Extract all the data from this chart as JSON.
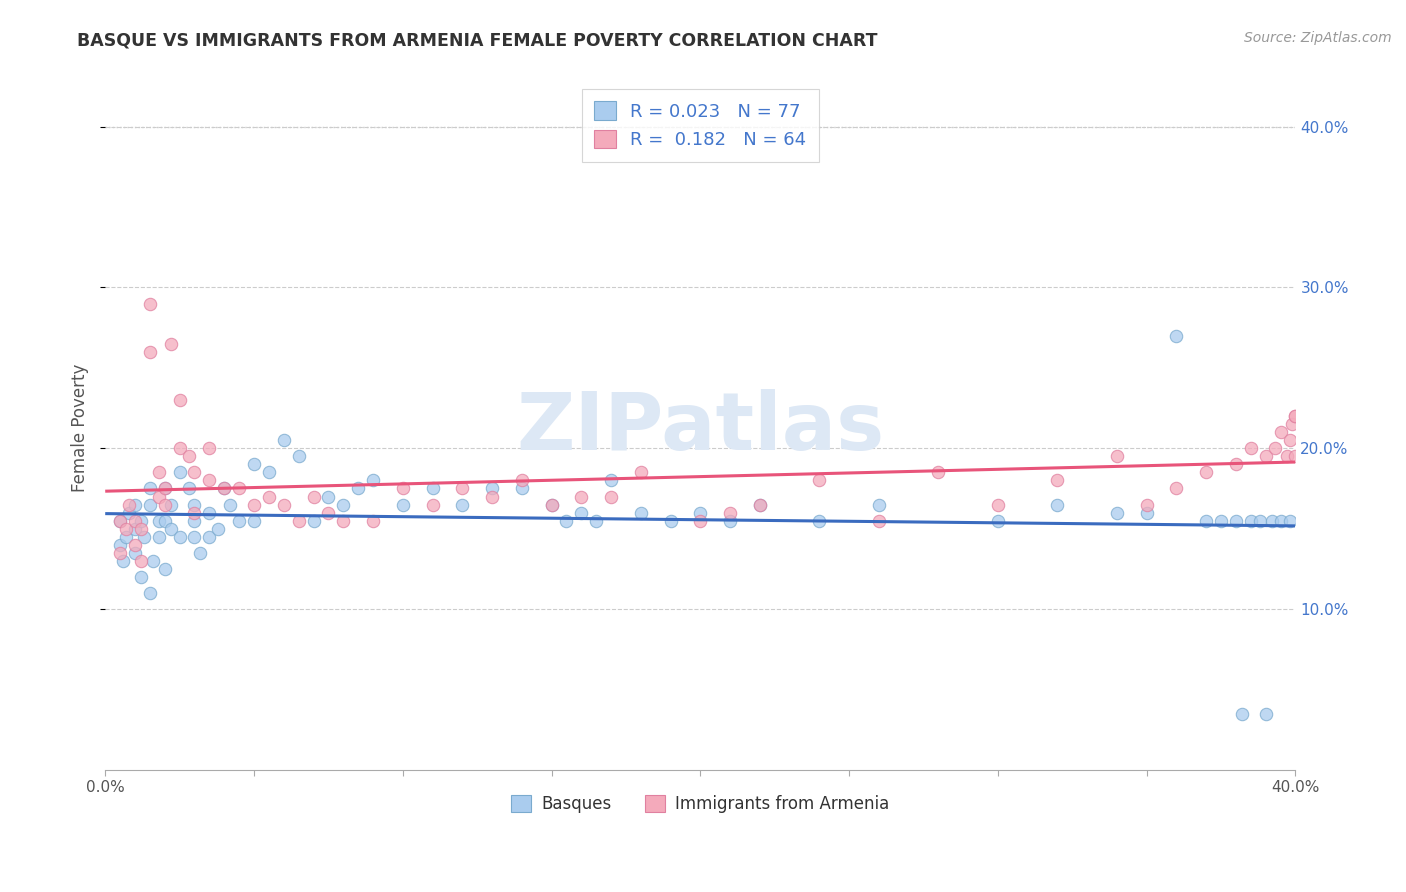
{
  "title": "BASQUE VS IMMIGRANTS FROM ARMENIA FEMALE POVERTY CORRELATION CHART",
  "source": "Source: ZipAtlas.com",
  "ylabel": "Female Poverty",
  "legend_label1": "Basques",
  "legend_label2": "Immigrants from Armenia",
  "r1": 0.023,
  "n1": 77,
  "r2": 0.182,
  "n2": 64,
  "color_basque": "#aaccee",
  "color_armenia": "#f4aabb",
  "edge_basque": "#7aaace",
  "edge_armenia": "#e080a0",
  "line_color_basque": "#3a6bbf",
  "line_color_armenia": "#e8547a",
  "watermark_color": "#dde8f5",
  "background_color": "#ffffff",
  "xlim": [
    0.0,
    0.4
  ],
  "ylim": [
    0.0,
    0.425
  ],
  "ytick_vals": [
    0.1,
    0.2,
    0.3,
    0.4
  ],
  "ytick_color": "#4477cc",
  "grid_color": "#cccccc",
  "title_color": "#333333",
  "source_color": "#999999",
  "ylabel_color": "#555555",
  "basque_x": [
    0.005,
    0.005,
    0.006,
    0.007,
    0.008,
    0.01,
    0.01,
    0.01,
    0.012,
    0.012,
    0.013,
    0.015,
    0.015,
    0.015,
    0.016,
    0.018,
    0.018,
    0.02,
    0.02,
    0.02,
    0.022,
    0.022,
    0.025,
    0.025,
    0.028,
    0.03,
    0.03,
    0.03,
    0.032,
    0.035,
    0.035,
    0.038,
    0.04,
    0.042,
    0.045,
    0.05,
    0.05,
    0.055,
    0.06,
    0.065,
    0.07,
    0.075,
    0.08,
    0.085,
    0.09,
    0.1,
    0.11,
    0.12,
    0.13,
    0.14,
    0.15,
    0.155,
    0.16,
    0.165,
    0.17,
    0.18,
    0.19,
    0.2,
    0.21,
    0.22,
    0.24,
    0.26,
    0.3,
    0.32,
    0.34,
    0.35,
    0.36,
    0.37,
    0.375,
    0.38,
    0.382,
    0.385,
    0.388,
    0.39,
    0.392,
    0.395,
    0.398
  ],
  "basque_y": [
    0.155,
    0.14,
    0.13,
    0.145,
    0.16,
    0.15,
    0.165,
    0.135,
    0.12,
    0.155,
    0.145,
    0.11,
    0.165,
    0.175,
    0.13,
    0.155,
    0.145,
    0.155,
    0.125,
    0.175,
    0.165,
    0.15,
    0.185,
    0.145,
    0.175,
    0.155,
    0.165,
    0.145,
    0.135,
    0.145,
    0.16,
    0.15,
    0.175,
    0.165,
    0.155,
    0.19,
    0.155,
    0.185,
    0.205,
    0.195,
    0.155,
    0.17,
    0.165,
    0.175,
    0.18,
    0.165,
    0.175,
    0.165,
    0.175,
    0.175,
    0.165,
    0.155,
    0.16,
    0.155,
    0.18,
    0.16,
    0.155,
    0.16,
    0.155,
    0.165,
    0.155,
    0.165,
    0.155,
    0.165,
    0.16,
    0.16,
    0.27,
    0.155,
    0.155,
    0.155,
    0.035,
    0.155,
    0.155,
    0.035,
    0.155,
    0.155,
    0.155
  ],
  "armenia_x": [
    0.005,
    0.005,
    0.007,
    0.008,
    0.01,
    0.01,
    0.012,
    0.012,
    0.015,
    0.015,
    0.018,
    0.018,
    0.02,
    0.02,
    0.022,
    0.025,
    0.025,
    0.028,
    0.03,
    0.03,
    0.035,
    0.035,
    0.04,
    0.045,
    0.05,
    0.055,
    0.06,
    0.065,
    0.07,
    0.075,
    0.08,
    0.09,
    0.1,
    0.11,
    0.12,
    0.13,
    0.14,
    0.15,
    0.16,
    0.17,
    0.18,
    0.2,
    0.21,
    0.22,
    0.24,
    0.26,
    0.28,
    0.3,
    0.32,
    0.34,
    0.35,
    0.36,
    0.37,
    0.38,
    0.385,
    0.39,
    0.393,
    0.395,
    0.397,
    0.398,
    0.399,
    0.4,
    0.4,
    0.4
  ],
  "armenia_y": [
    0.155,
    0.135,
    0.15,
    0.165,
    0.14,
    0.155,
    0.13,
    0.15,
    0.29,
    0.26,
    0.17,
    0.185,
    0.165,
    0.175,
    0.265,
    0.2,
    0.23,
    0.195,
    0.185,
    0.16,
    0.18,
    0.2,
    0.175,
    0.175,
    0.165,
    0.17,
    0.165,
    0.155,
    0.17,
    0.16,
    0.155,
    0.155,
    0.175,
    0.165,
    0.175,
    0.17,
    0.18,
    0.165,
    0.17,
    0.17,
    0.185,
    0.155,
    0.16,
    0.165,
    0.18,
    0.155,
    0.185,
    0.165,
    0.18,
    0.195,
    0.165,
    0.175,
    0.185,
    0.19,
    0.2,
    0.195,
    0.2,
    0.21,
    0.195,
    0.205,
    0.215,
    0.22,
    0.195,
    0.22
  ]
}
